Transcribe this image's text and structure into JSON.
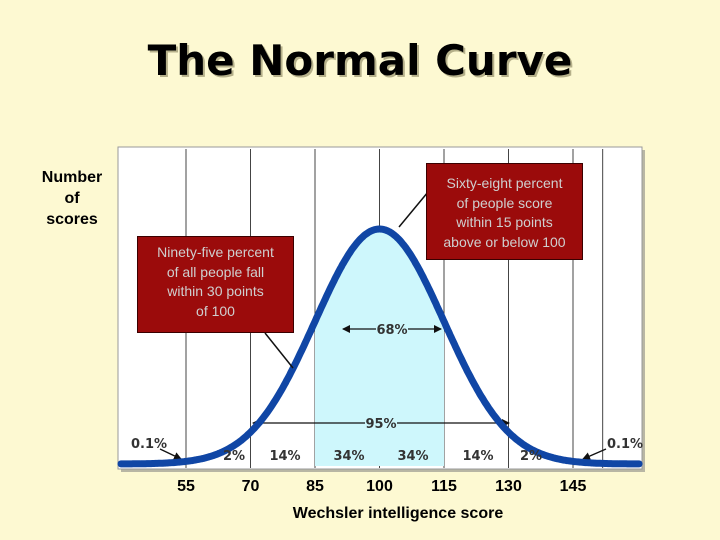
{
  "title": "The Normal Curve",
  "chart_data": {
    "type": "area",
    "title": "The Normal Curve",
    "ylabel": "Number of scores",
    "xlabel": "Wechsler intelligence score",
    "x_ticks": [
      "55",
      "70",
      "85",
      "100",
      "115",
      "130",
      "145"
    ],
    "mean": 100,
    "sd": 15,
    "xlim": [
      40,
      160
    ],
    "shaded_range": [
      85,
      115
    ],
    "segment_percents": [
      "2%",
      "14%",
      "34%",
      "34%",
      "14%",
      "2%"
    ],
    "tail_percents": [
      "0.1%",
      "0.1%"
    ],
    "bracket_68_label": "68%",
    "bracket_95_label": "95%",
    "grid": true,
    "colors": {
      "curve": "#1046a5",
      "shade": "#cef7fc",
      "callout": "#9b0b0b"
    },
    "annotations": {
      "left": "Ninety-five percent of all people fall within 30 points of 100",
      "right": "Sixty-eight percent of people score within 15 points above or below 100"
    }
  },
  "ylabel_lines": [
    "Number",
    "of",
    "scores"
  ],
  "callout_95_lines": [
    "Ninety-five percent",
    "of all people fall",
    "within 30 points",
    "of 100"
  ],
  "callout_68_lines": [
    "Sixty-eight percent",
    "of people score",
    "within 15 points",
    "above or below 100"
  ]
}
